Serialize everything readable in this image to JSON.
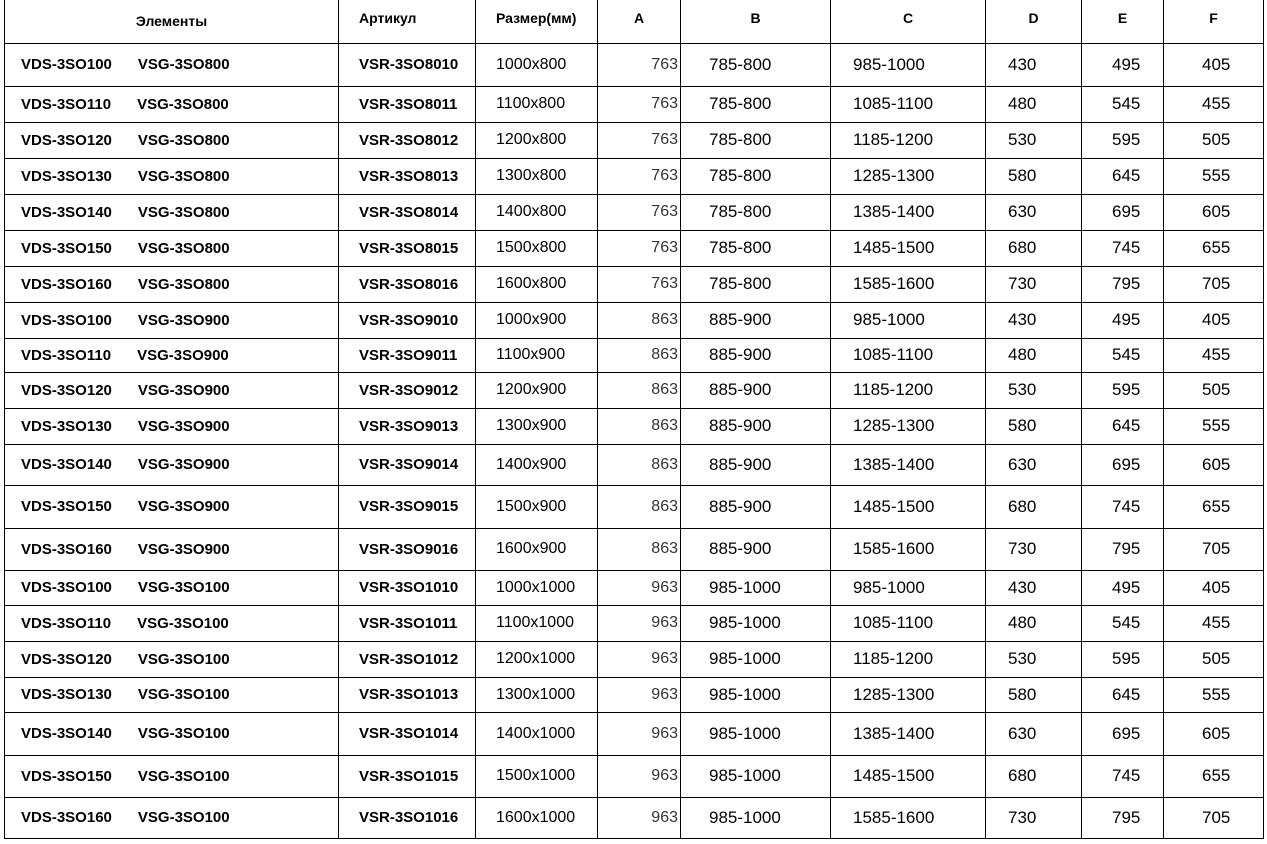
{
  "headers": {
    "elements": "Элементы",
    "article": "Артикул",
    "size": "Размер(мм)",
    "a": "A",
    "b": "B",
    "c": "C",
    "d": "D",
    "e": "E",
    "f": "F"
  },
  "rows": [
    [
      "VDS-3SO100",
      "VSG-3SO800",
      "VSR-3SO8010",
      "1000x800",
      "763",
      "785-800",
      "985-1000",
      "430",
      "495",
      "405"
    ],
    [
      "VDS-3SO110",
      "VSG-3SO800",
      "VSR-3SO8011",
      "1100x800",
      "763",
      "785-800",
      "1085-1100",
      "480",
      "545",
      "455"
    ],
    [
      "VDS-3SO120",
      "VSG-3SO800",
      "VSR-3SO8012",
      "1200x800",
      "763",
      "785-800",
      "1185-1200",
      "530",
      "595",
      "505"
    ],
    [
      "VDS-3SO130",
      "VSG-3SO800",
      "VSR-3SO8013",
      "1300x800",
      "763",
      "785-800",
      "1285-1300",
      "580",
      "645",
      "555"
    ],
    [
      "VDS-3SO140",
      "VSG-3SO800",
      "VSR-3SO8014",
      "1400x800",
      "763",
      "785-800",
      "1385-1400",
      "630",
      "695",
      "605"
    ],
    [
      "VDS-3SO150",
      "VSG-3SO800",
      "VSR-3SO8015",
      "1500x800",
      "763",
      "785-800",
      "1485-1500",
      "680",
      "745",
      "655"
    ],
    [
      "VDS-3SO160",
      "VSG-3SO800",
      "VSR-3SO8016",
      "1600x800",
      "763",
      "785-800",
      "1585-1600",
      "730",
      "795",
      "705"
    ],
    [
      "VDS-3SO100",
      "VSG-3SO900",
      "VSR-3SO9010",
      "1000x900",
      "863",
      "885-900",
      "985-1000",
      "430",
      "495",
      "405"
    ],
    [
      "VDS-3SO110",
      "VSG-3SO900",
      "VSR-3SO9011",
      "1100x900",
      "863",
      "885-900",
      "1085-1100",
      "480",
      "545",
      "455"
    ],
    [
      "VDS-3SO120",
      "VSG-3SO900",
      "VSR-3SO9012",
      "1200x900",
      "863",
      "885-900",
      "1185-1200",
      "530",
      "595",
      "505"
    ],
    [
      "VDS-3SO130",
      "VSG-3SO900",
      "VSR-3SO9013",
      "1300x900",
      "863",
      "885-900",
      "1285-1300",
      "580",
      "645",
      "555"
    ],
    [
      "VDS-3SO140",
      "VSG-3SO900",
      "VSR-3SO9014",
      "1400x900",
      "863",
      "885-900",
      "1385-1400",
      "630",
      "695",
      "605"
    ],
    [
      "VDS-3SO150",
      "VSG-3SO900",
      "VSR-3SO9015",
      "1500x900",
      "863",
      "885-900",
      "1485-1500",
      "680",
      "745",
      "655"
    ],
    [
      "VDS-3SO160",
      "VSG-3SO900",
      "VSR-3SO9016",
      "1600x900",
      "863",
      "885-900",
      "1585-1600",
      "730",
      "795",
      "705"
    ],
    [
      "VDS-3SO100",
      "VSG-3SO100",
      "VSR-3SO1010",
      "1000x1000",
      "963",
      "985-1000",
      "985-1000",
      "430",
      "495",
      "405"
    ],
    [
      "VDS-3SO110",
      "VSG-3SO100",
      "VSR-3SO1011",
      "1100x1000",
      "963",
      "985-1000",
      "1085-1100",
      "480",
      "545",
      "455"
    ],
    [
      "VDS-3SO120",
      "VSG-3SO100",
      "VSR-3SO1012",
      "1200x1000",
      "963",
      "985-1000",
      "1185-1200",
      "530",
      "595",
      "505"
    ],
    [
      "VDS-3SO130",
      "VSG-3SO100",
      "VSR-3SO1013",
      "1300x1000",
      "963",
      "985-1000",
      "1285-1300",
      "580",
      "645",
      "555"
    ],
    [
      "VDS-3SO140",
      "VSG-3SO100",
      "VSR-3SO1014",
      "1400x1000",
      "963",
      "985-1000",
      "1385-1400",
      "630",
      "695",
      "605"
    ],
    [
      "VDS-3SO150",
      "VSG-3SO100",
      "VSR-3SO1015",
      "1500x1000",
      "963",
      "985-1000",
      "1485-1500",
      "680",
      "745",
      "655"
    ],
    [
      "VDS-3SO160",
      "VSG-3SO100",
      "VSR-3SO1016",
      "1600x1000",
      "963",
      "985-1000",
      "1585-1600",
      "730",
      "795",
      "705"
    ]
  ]
}
